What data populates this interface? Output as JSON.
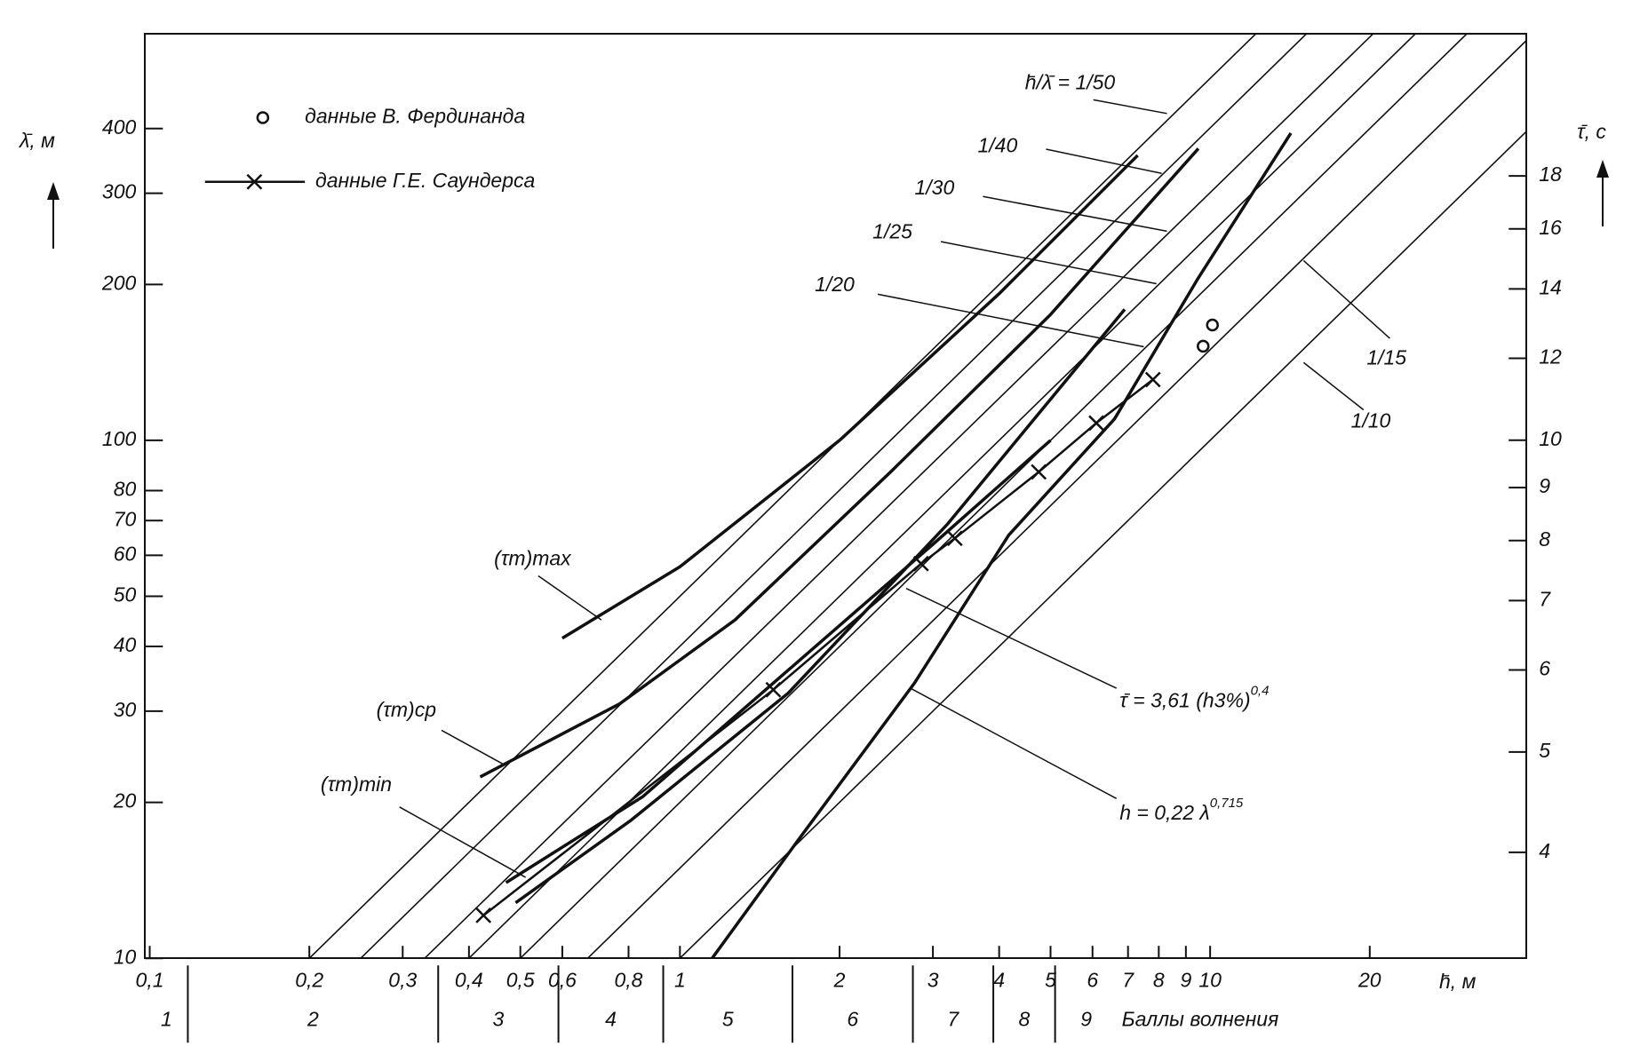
{
  "chart_data": {
    "type": "line",
    "log_x": true,
    "log_y": true,
    "x_label": "h̄, м",
    "y_label": "λ̄, м",
    "y2_label": "τ̄, с",
    "xlim": [
      0.098,
      39.5
    ],
    "ylim": [
      10,
      610
    ],
    "y2lim": [
      3.16,
      24.7
    ],
    "xticks": [
      {
        "value": 0.1,
        "label": "0,1"
      },
      {
        "value": 0.2,
        "label": "0,2"
      },
      {
        "value": 0.3,
        "label": "0,3"
      },
      {
        "value": 0.4,
        "label": "0,4"
      },
      {
        "value": 0.5,
        "label": "0,5"
      },
      {
        "value": 0.6,
        "label": "0,6"
      },
      {
        "value": 0.8,
        "label": "0,8"
      },
      1,
      2,
      3,
      4,
      5,
      6,
      7,
      8,
      9,
      10,
      20
    ],
    "yticks": [
      10,
      20,
      30,
      40,
      50,
      60,
      70,
      80,
      100,
      200,
      300,
      400
    ],
    "y2ticks": [
      4,
      5,
      6,
      7,
      8,
      9,
      10,
      12,
      14,
      16,
      18
    ],
    "series": [
      {
        "name": "h̄/λ̄ = 1/50",
        "color": "#111",
        "width": 1.6,
        "x": [
          0.2,
          12.2
        ],
        "values": [
          10,
          610
        ]
      },
      {
        "name": "1/40",
        "color": "#111",
        "width": 1.6,
        "x": [
          0.25,
          15.2
        ],
        "values": [
          10,
          610
        ]
      },
      {
        "name": "1/30",
        "color": "#111",
        "width": 1.6,
        "x": [
          0.33,
          20.3
        ],
        "values": [
          10,
          610
        ]
      },
      {
        "name": "1/25",
        "color": "#111",
        "width": 1.6,
        "x": [
          0.4,
          24.4
        ],
        "values": [
          10,
          610
        ]
      },
      {
        "name": "1/20",
        "color": "#111",
        "width": 1.6,
        "x": [
          0.5,
          30.5
        ],
        "values": [
          10,
          610
        ]
      },
      {
        "name": "1/15",
        "color": "#111",
        "width": 1.6,
        "x": [
          0.67,
          39.5
        ],
        "values": [
          10,
          592
        ]
      },
      {
        "name": "1/10",
        "color": "#111",
        "width": 1.6,
        "x": [
          1.0,
          39.5
        ],
        "values": [
          10,
          395
        ]
      },
      {
        "name": "(τm)max",
        "color": "#111",
        "width": 3.5,
        "x": [
          0.6,
          1.0,
          2.0,
          4.0,
          7.3
        ],
        "values": [
          41.5,
          57,
          100,
          192,
          355
        ]
      },
      {
        "name": "(τm)cp",
        "color": "#111",
        "width": 3.5,
        "x": [
          0.42,
          0.77,
          1.27,
          2.5,
          5.0,
          9.5
        ],
        "values": [
          22.4,
          31,
          45,
          87,
          175,
          366
        ]
      },
      {
        "name": "(τm)min",
        "color": "#111",
        "width": 3.5,
        "x": [
          0.49,
          0.81,
          1.6,
          3.2,
          6.9
        ],
        "values": [
          12.8,
          18.5,
          32.5,
          69,
          179
        ]
      },
      {
        "name": "τ̄ = 3,61 (h3%)",
        "exponent": "0,4",
        "color": "#111",
        "width": 3.5,
        "x": [
          0.47,
          0.85,
          1.6,
          3.0,
          5.0
        ],
        "values": [
          14,
          20.5,
          36,
          63,
          100
        ]
      },
      {
        "name": "h = 0,22 λ",
        "exponent": "0,715",
        "color": "#111",
        "width": 3.5,
        "x": [
          1.15,
          1.67,
          2.77,
          4.17,
          6.6,
          9.5,
          14.2
        ],
        "values": [
          10,
          16.9,
          34,
          65.6,
          110,
          206,
          392
        ]
      },
      {
        "name": "данные Г.Е. Саундерса",
        "color": "#111",
        "width": 2.5,
        "marker": "x",
        "x": [
          0.426,
          1.5,
          2.85,
          3.3,
          4.75,
          6.1,
          7.8
        ],
        "values": [
          12.1,
          33,
          57.8,
          64.7,
          86.9,
          108,
          131
        ]
      },
      {
        "name": "данные В. Фердинанда",
        "color": "#111",
        "width": 0,
        "marker": "circle",
        "x": [
          9.7,
          10.1
        ],
        "values": [
          152,
          167
        ]
      }
    ],
    "legend": [
      12,
      13
    ],
    "sea_state": {
      "label": "Баллы волнения",
      "grades": [
        "1",
        "2",
        "3",
        "4",
        "5",
        "6",
        "7",
        "8",
        "9"
      ],
      "boundaries": [
        0.118,
        0.35,
        0.59,
        0.93,
        1.63,
        2.75,
        3.9,
        5.1
      ]
    }
  }
}
